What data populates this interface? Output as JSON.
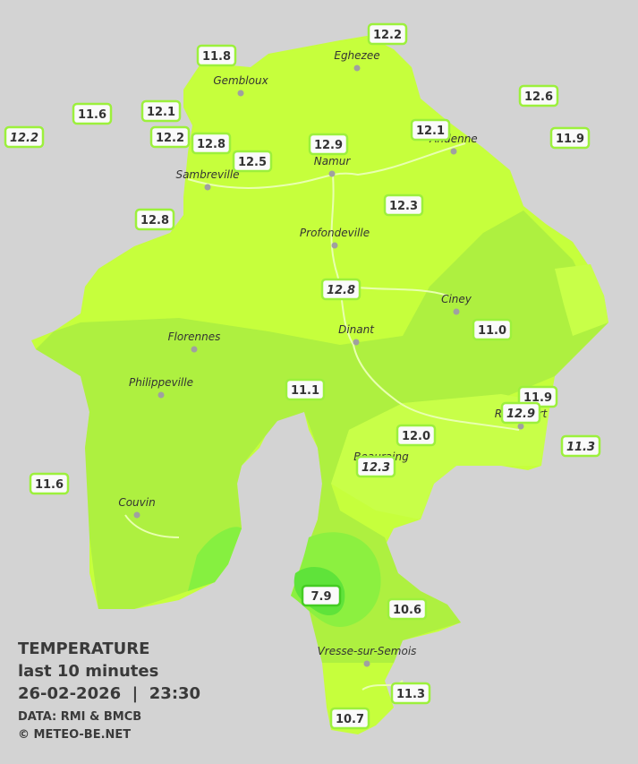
{
  "map": {
    "towns": [
      "Eghezee",
      "Gembloux",
      "Andenne",
      "Namur",
      "Sambreville",
      "Profondeville",
      "Ciney",
      "Dinant",
      "Florennes",
      "Philippeville",
      "Rochefort",
      "Beauraing",
      "Couvin",
      "Vresse-sur-Semois"
    ],
    "stations": [
      {
        "value": "12.2"
      },
      {
        "value": "11.8"
      },
      {
        "value": "12.6"
      },
      {
        "value": "11.6"
      },
      {
        "value": "12.1"
      },
      {
        "value": "12.2"
      },
      {
        "value": "12.8"
      },
      {
        "value": "12.9"
      },
      {
        "value": "12.1"
      },
      {
        "value": "11.9"
      },
      {
        "value": "12.2",
        "italic": true
      },
      {
        "value": "12.5"
      },
      {
        "value": "12.3"
      },
      {
        "value": "12.8"
      },
      {
        "value": "12.8",
        "italic": true
      },
      {
        "value": "11.0"
      },
      {
        "value": "11.1"
      },
      {
        "value": "11.9"
      },
      {
        "value": "12.9",
        "italic": true
      },
      {
        "value": "11.3",
        "italic": true
      },
      {
        "value": "12.0"
      },
      {
        "value": "12.3",
        "italic": true
      },
      {
        "value": "11.6"
      },
      {
        "value": "7.9"
      },
      {
        "value": "10.6"
      },
      {
        "value": "11.3"
      },
      {
        "value": "10.7"
      }
    ],
    "caption": {
      "title": "TEMPERATURE",
      "subtitle": "last 10 minutes",
      "datetime": "26-02-2026  |  23:30",
      "source": "DATA: RMI & BMCB",
      "credit": "© METEO-BE.NET"
    }
  }
}
